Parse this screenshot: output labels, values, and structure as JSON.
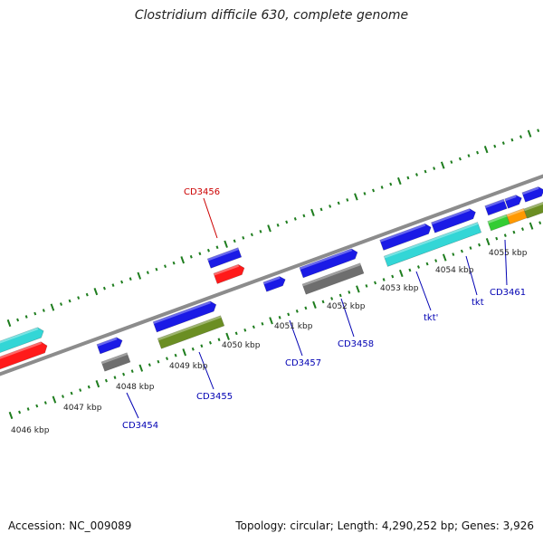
{
  "title": "Clostridium difficile 630, complete genome",
  "footer": {
    "accession": "Accession: NC_009089",
    "summary": "Topology: circular; Length: 4,290,252 bp; Genes: 3,926"
  },
  "colors": {
    "backbone": "#8c8c8c",
    "tick": "#1e7d1e",
    "tick_label": "#222222",
    "gene_label": "#0000b3",
    "highlight_label": "#cc0000",
    "blue": "#1a1ae6",
    "cyan": "#33d6d6",
    "red": "#ff1a1a",
    "gray": "#6e6e6e",
    "olive": "#6b8e23",
    "green": "#33cc33",
    "orange": "#ff9900"
  },
  "scale": {
    "labels": [
      "4046 kbp",
      "4047 kbp",
      "4048 kbp",
      "4049 kbp",
      "4050 kbp",
      "4051 kbp",
      "4052 kbp",
      "4053 kbp",
      "4054 kbp",
      "4055 kbp"
    ]
  },
  "genes": [
    {
      "label": "CD3454",
      "color_key": "gene_label"
    },
    {
      "label": "CD3455",
      "color_key": "gene_label"
    },
    {
      "label": "CD3456",
      "color_key": "highlight_label"
    },
    {
      "label": "CD3457",
      "color_key": "gene_label"
    },
    {
      "label": "CD3458",
      "color_key": "gene_label"
    },
    {
      "label": "tkt'",
      "color_key": "gene_label"
    },
    {
      "label": "tkt",
      "color_key": "gene_label"
    },
    {
      "label": "CD3461",
      "color_key": "gene_label"
    }
  ]
}
